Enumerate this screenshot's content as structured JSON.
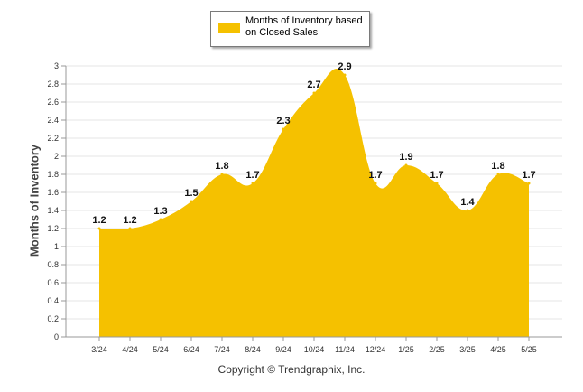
{
  "chart_data": {
    "type": "area",
    "categories": [
      "3/24",
      "4/24",
      "5/24",
      "6/24",
      "7/24",
      "8/24",
      "9/24",
      "10/24",
      "11/24",
      "12/24",
      "1/25",
      "2/25",
      "3/25",
      "4/25",
      "5/25"
    ],
    "series": [
      {
        "name": "Months of Inventory based on Closed Sales",
        "values": [
          1.2,
          1.2,
          1.3,
          1.5,
          1.8,
          1.7,
          2.3,
          2.7,
          2.9,
          1.7,
          1.9,
          1.7,
          1.4,
          1.8,
          1.7
        ]
      }
    ],
    "data_labels": [
      "1.2",
      "1.2",
      "1.3",
      "1.5",
      "1.8",
      "1.7",
      "2.3",
      "2.7",
      "2.9",
      "1.7",
      "1.9",
      "1.7",
      "1.4",
      "1.8",
      "1.7"
    ],
    "ylabel": "Months of Inventory",
    "ylim": [
      0,
      3
    ],
    "yticks": [
      "0",
      "0.2",
      "0.4",
      "0.6",
      "0.8",
      "1",
      "1.2",
      "1.4",
      "1.6",
      "1.8",
      "2",
      "2.2",
      "2.4",
      "2.6",
      "2.8",
      "3"
    ],
    "grid": true,
    "legend": "top-center",
    "color": "#f5c100"
  },
  "legend_label": "Months of Inventory based on Closed Sales",
  "copyright": "Copyright © Trendgraphix, Inc."
}
